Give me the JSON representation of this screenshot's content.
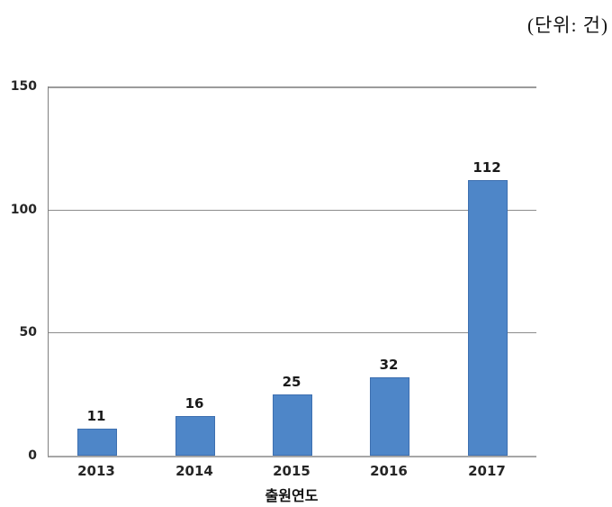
{
  "chart_data": {
    "type": "bar",
    "title": "",
    "unit_label": "(단위: 건)",
    "categories": [
      "2013",
      "2014",
      "2015",
      "2016",
      "2017"
    ],
    "values": [
      11,
      16,
      25,
      32,
      112
    ],
    "xlabel": "출원연도",
    "ylabel": "",
    "ylim": [
      0,
      150
    ],
    "yticks": [
      0,
      50,
      100,
      150
    ],
    "grid": true,
    "legend": "none",
    "bar_color": "#4e86c8",
    "bar_border_color": "#3d6fb0",
    "value_labels_shown": true
  }
}
